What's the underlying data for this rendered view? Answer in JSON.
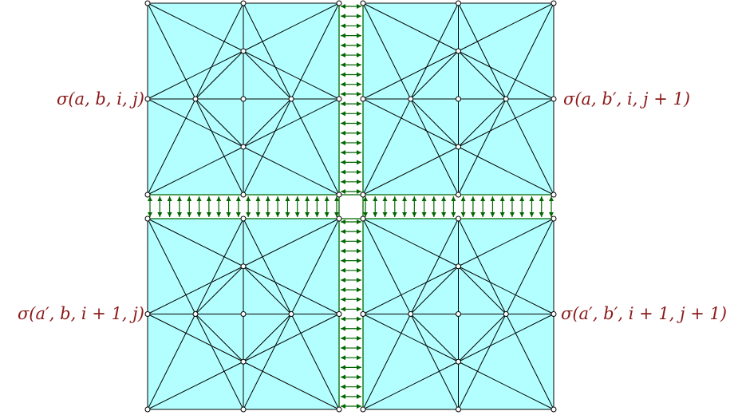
{
  "colors": {
    "fill": "#b3ffff",
    "edge": "#000000",
    "arrow": "#006600",
    "vertex_fill": "#ffffff",
    "label": "#8b1a1a"
  },
  "labels": {
    "top_left": "σ(a, b, i, j)",
    "top_right": "σ(a, b′, i, j + 1)",
    "bottom_left": "σ(a′, b, i + 1, j)",
    "bottom_right": "σ(a′, b′, i + 1, j + 1)"
  }
}
